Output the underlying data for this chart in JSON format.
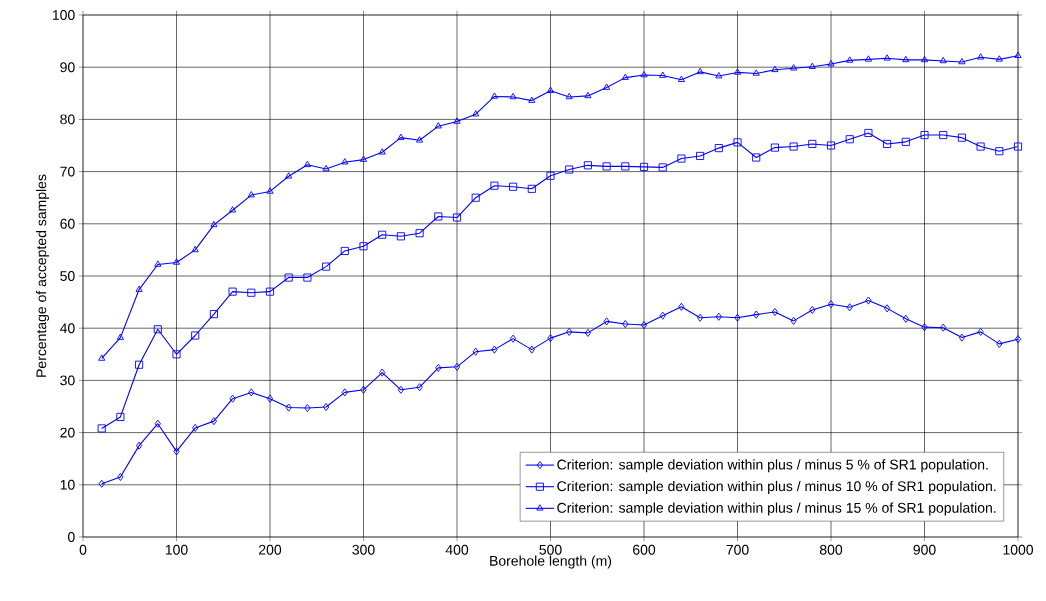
{
  "chart_data": {
    "type": "line",
    "xlabel": "Borehole length (m)",
    "ylabel": "Percentage of accepted samples",
    "x": [
      20,
      40,
      60,
      80,
      100,
      120,
      140,
      160,
      180,
      200,
      220,
      240,
      260,
      280,
      300,
      320,
      340,
      360,
      380,
      400,
      420,
      440,
      460,
      480,
      500,
      520,
      540,
      560,
      580,
      600,
      620,
      640,
      660,
      680,
      700,
      720,
      740,
      760,
      780,
      800,
      820,
      840,
      860,
      880,
      900,
      920,
      940,
      960,
      980,
      1000
    ],
    "series": [
      {
        "name": "Criterion: sample deviation within plus / minus 5 % of  SR1 population.",
        "color": "#0000ff",
        "marker": "diamond",
        "values": [
          10.2,
          11.5,
          17.5,
          21.7,
          16.4,
          20.9,
          22.2,
          26.5,
          27.7,
          26.5,
          24.8,
          24.7,
          24.9,
          27.7,
          28.2,
          31.5,
          28.2,
          28.7,
          32.4,
          32.6,
          35.5,
          35.9,
          38.0,
          35.9,
          38.1,
          39.3,
          39.1,
          41.3,
          40.8,
          40.6,
          42.4,
          44.1,
          42.0,
          42.2,
          42.0,
          42.6,
          43.1,
          41.4,
          43.5,
          44.6,
          44.0,
          45.3,
          43.8,
          41.8,
          40.2,
          40.1,
          38.2,
          39.3,
          37.0,
          37.9
        ]
      },
      {
        "name": "Criterion: sample deviation within plus / minus 10 % of  SR1 population.",
        "color": "#0000ff",
        "marker": "square",
        "values": [
          20.8,
          23.0,
          33.0,
          39.8,
          35.0,
          38.6,
          42.7,
          47.0,
          46.8,
          47.0,
          49.7,
          49.7,
          51.8,
          54.8,
          55.7,
          57.9,
          57.6,
          58.2,
          61.4,
          61.2,
          65.0,
          67.3,
          67.1,
          66.7,
          69.2,
          70.4,
          71.2,
          71.0,
          71.0,
          70.9,
          70.8,
          72.5,
          73.0,
          74.5,
          75.6,
          72.7,
          74.6,
          74.8,
          75.3,
          75.0,
          76.2,
          77.4,
          75.3,
          75.7,
          77.0,
          77.0,
          76.5,
          74.8,
          73.9,
          74.8
        ]
      },
      {
        "name": "Criterion: sample deviation within plus / minus 15 % of  SR1 population.",
        "color": "#0000ff",
        "marker": "triangle",
        "values": [
          34.2,
          38.2,
          47.4,
          52.2,
          52.6,
          55.0,
          59.8,
          62.6,
          65.5,
          66.2,
          69.1,
          71.3,
          70.5,
          71.8,
          72.3,
          73.7,
          76.5,
          76.0,
          78.7,
          79.6,
          81.0,
          84.4,
          84.3,
          83.6,
          85.5,
          84.3,
          84.5,
          86.1,
          88.0,
          88.5,
          88.4,
          87.6,
          89.1,
          88.3,
          89.0,
          88.8,
          89.5,
          89.8,
          90.1,
          90.6,
          91.3,
          91.5,
          91.7,
          91.4,
          91.4,
          91.2,
          91.0,
          91.9,
          91.5,
          92.2
        ]
      }
    ],
    "xlim": [
      0,
      1000
    ],
    "ylim": [
      0,
      100
    ],
    "xticks": [
      0,
      100,
      200,
      300,
      400,
      500,
      600,
      700,
      800,
      900,
      1000
    ],
    "yticks": [
      0,
      10,
      20,
      30,
      40,
      50,
      60,
      70,
      80,
      90,
      100
    ],
    "grid": true,
    "legend": "bottom right",
    "line_style": "solid"
  }
}
